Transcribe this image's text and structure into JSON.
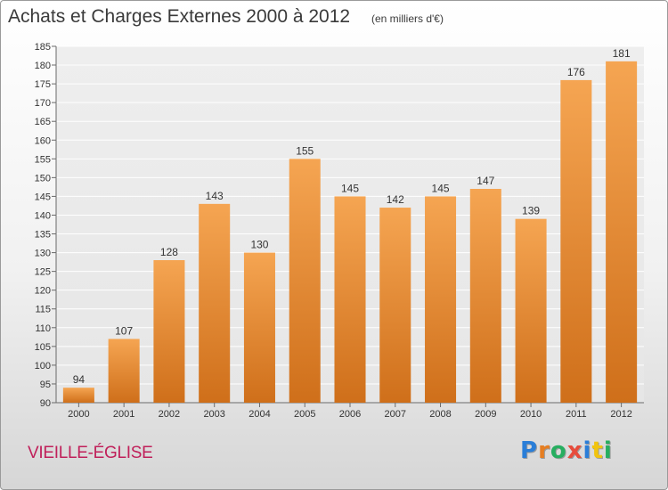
{
  "title": "Achats et Charges Externes 2000 à 2012",
  "subtitle": "(en milliers d'€)",
  "commune": "VIEILLE-ÉGLISE",
  "logo": {
    "text": "Proxiti",
    "letter_colors": [
      "#2a7ed8",
      "#e67e22",
      "#27ae60",
      "#e74c3c",
      "#2a7ed8",
      "#f1c40f",
      "#27ae60"
    ]
  },
  "colors": {
    "bar_top": "#f5a552",
    "bar_bottom": "#cf6f1a",
    "axis": "#6a6a6a",
    "grid": "#ffffff",
    "plot_bg": "#e6e6e6"
  },
  "chart_data": {
    "type": "bar",
    "categories": [
      "2000",
      "2001",
      "2002",
      "2003",
      "2004",
      "2005",
      "2006",
      "2007",
      "2008",
      "2009",
      "2010",
      "2011",
      "2012"
    ],
    "values": [
      94,
      107,
      128,
      143,
      130,
      155,
      145,
      142,
      145,
      147,
      139,
      176,
      181
    ],
    "ylim": [
      90,
      185
    ],
    "yticks": [
      90,
      95,
      100,
      105,
      110,
      115,
      120,
      125,
      130,
      135,
      140,
      145,
      150,
      155,
      160,
      165,
      170,
      175,
      180,
      185
    ],
    "grid": true,
    "data_labels": true
  }
}
